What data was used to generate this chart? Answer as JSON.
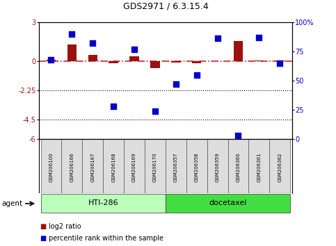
{
  "title": "GDS2971 / 6.3.15.4",
  "samples": [
    "GSM206100",
    "GSM206166",
    "GSM206167",
    "GSM206168",
    "GSM206169",
    "GSM206170",
    "GSM206357",
    "GSM206358",
    "GSM206359",
    "GSM206360",
    "GSM206361",
    "GSM206362"
  ],
  "log2_vals": [
    0.1,
    1.3,
    0.5,
    -0.15,
    0.35,
    -0.55,
    -0.12,
    -0.15,
    0.0,
    1.55,
    0.07,
    0.05
  ],
  "pct_rank": [
    68,
    90,
    82,
    28,
    77,
    24,
    47,
    55,
    86,
    3,
    87,
    65
  ],
  "ylim_left": [
    -6,
    3
  ],
  "ylim_right": [
    0,
    100
  ],
  "yticks_left": [
    3,
    0,
    -2.25,
    -4.5,
    -6
  ],
  "yticks_right": [
    100,
    75,
    50,
    25,
    0
  ],
  "hlines": [
    -2.25,
    -4.5
  ],
  "bar_color": "#9B1111",
  "dot_color": "#0000CC",
  "dashed_color": "#CC2222",
  "group1_label": "HTI-286",
  "group2_label": "docetaxel",
  "group1_color": "#BBFFBB",
  "group2_color": "#44DD44",
  "agent_label": "agent",
  "legend1": "log2 ratio",
  "legend2": "percentile rank within the sample",
  "bar_width": 0.45,
  "dot_size": 35
}
